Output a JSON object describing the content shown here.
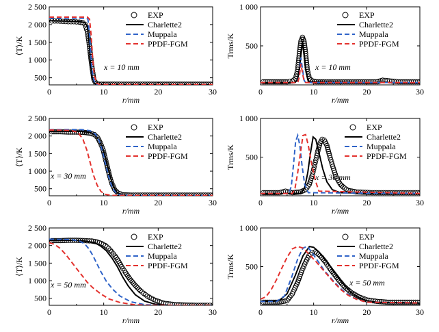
{
  "chart_data": [
    {
      "type": "line",
      "panel": "T-mean x=10",
      "ylabel": "⟨T⟩/K",
      "xlabel": "r/mm",
      "annotation": "x = 10 mm",
      "xlim": [
        0,
        30
      ],
      "ylim": [
        300,
        2500
      ],
      "xticks": [
        "0",
        "10",
        "20",
        "30"
      ],
      "yticks": [
        "500",
        "1 000",
        "1 500",
        "2 000",
        "2 500"
      ],
      "legend": [
        "EXP",
        "Charlette2",
        "Muppala",
        "PPDF-FGM"
      ],
      "series": [
        {
          "name": "EXP",
          "style": "marker",
          "x": [
            0.5,
            1.5,
            2.5,
            3.5,
            4.5,
            5.5,
            6.2,
            6.6,
            7.0,
            7.3,
            7.6,
            7.9,
            8.2,
            8.6,
            9.2,
            10,
            12,
            15,
            18,
            22,
            26,
            30
          ],
          "y": [
            2100,
            2100,
            2090,
            2080,
            2080,
            2070,
            2050,
            2000,
            1800,
            1500,
            1100,
            750,
            450,
            330,
            320,
            320,
            320,
            320,
            320,
            320,
            320,
            320
          ]
        },
        {
          "name": "Charlette2",
          "x": [
            0,
            5,
            6.5,
            7.0,
            7.3,
            7.6,
            7.9,
            8.3,
            9,
            30
          ],
          "y": [
            2110,
            2090,
            2060,
            1950,
            1500,
            900,
            500,
            340,
            310,
            310
          ]
        },
        {
          "name": "Muppala",
          "x": [
            0,
            6.8,
            7.1,
            7.4,
            7.7,
            8.0,
            8.4,
            9,
            30
          ],
          "y": [
            2180,
            2180,
            2150,
            1700,
            1000,
            550,
            330,
            310,
            310
          ]
        },
        {
          "name": "PPDF-FGM",
          "x": [
            0,
            7.0,
            7.4,
            7.7,
            8.0,
            8.3,
            8.7,
            9.2,
            30
          ],
          "y": [
            2210,
            2210,
            2150,
            1700,
            1000,
            550,
            350,
            310,
            310
          ]
        }
      ]
    },
    {
      "type": "line",
      "panel": "Trms x=10",
      "ylabel": "Trms/K",
      "xlabel": "r/mm",
      "annotation": "x = 10 mm",
      "xlim": [
        0,
        30
      ],
      "ylim": [
        0,
        1000
      ],
      "xticks": [
        "0",
        "10",
        "20",
        "30"
      ],
      "yticks": [
        "500",
        "1 000"
      ],
      "legend": [
        "EXP",
        "Charlette2",
        "Muppala",
        "PPDF-FGM"
      ],
      "series": [
        {
          "name": "EXP",
          "style": "marker",
          "x": [
            0.5,
            2,
            3.5,
            5,
            6,
            6.6,
            7.0,
            7.3,
            7.6,
            7.9,
            8.2,
            8.5,
            8.8,
            9.2,
            9.8,
            10.5,
            12,
            15,
            18,
            22,
            23,
            26,
            30
          ],
          "y": [
            40,
            40,
            40,
            40,
            50,
            80,
            200,
            400,
            560,
            610,
            560,
            400,
            200,
            80,
            50,
            40,
            40,
            40,
            40,
            40,
            60,
            40,
            40
          ]
        },
        {
          "name": "Charlette2",
          "x": [
            0,
            6.5,
            7.0,
            7.3,
            7.6,
            7.9,
            8.2,
            8.5,
            9.0,
            30
          ],
          "y": [
            30,
            30,
            70,
            200,
            420,
            560,
            420,
            200,
            40,
            30
          ]
        },
        {
          "name": "Muppala",
          "x": [
            0,
            7.0,
            7.3,
            7.6,
            7.9,
            8.2,
            8.5,
            30
          ],
          "y": [
            30,
            30,
            120,
            350,
            200,
            60,
            30,
            30
          ]
        },
        {
          "name": "PPDF-FGM",
          "x": [
            0,
            7.0,
            7.3,
            7.6,
            7.9,
            8.2,
            8.5,
            30
          ],
          "y": [
            30,
            30,
            100,
            270,
            150,
            50,
            30,
            30
          ]
        }
      ]
    },
    {
      "type": "line",
      "panel": "T-mean x=30",
      "ylabel": "⟨T⟩/K",
      "xlabel": "r/mm",
      "annotation": "x = 30 mm",
      "xlim": [
        0,
        30
      ],
      "ylim": [
        300,
        2500
      ],
      "xticks": [
        "0",
        "10",
        "20",
        "30"
      ],
      "yticks": [
        "500",
        "1 000",
        "1 500",
        "2 000",
        "2 500"
      ],
      "legend": [
        "EXP",
        "Charlette2",
        "Muppala",
        "PPDF-FGM"
      ],
      "series": [
        {
          "name": "EXP",
          "style": "marker",
          "x": [
            0.5,
            2,
            3.5,
            5,
            6.5,
            7.5,
            8.3,
            8.9,
            9.4,
            9.9,
            10.3,
            10.7,
            11.1,
            11.5,
            12,
            12.6,
            13.5,
            15,
            18,
            21,
            24,
            27,
            30
          ],
          "y": [
            2120,
            2120,
            2110,
            2110,
            2100,
            2080,
            2040,
            1950,
            1800,
            1600,
            1350,
            1100,
            850,
            650,
            480,
            380,
            330,
            320,
            320,
            320,
            320,
            320,
            320
          ]
        },
        {
          "name": "Charlette2",
          "x": [
            0,
            6,
            7.5,
            8.5,
            9.3,
            10,
            10.6,
            11.2,
            11.8,
            12.5,
            13.5,
            15,
            30
          ],
          "y": [
            2130,
            2130,
            2100,
            2020,
            1850,
            1550,
            1200,
            850,
            550,
            380,
            320,
            310,
            310
          ]
        },
        {
          "name": "Muppala",
          "x": [
            0,
            6,
            7.5,
            8.5,
            9.2,
            9.8,
            10.4,
            11,
            11.6,
            12.3,
            13.2,
            15,
            30
          ],
          "y": [
            2180,
            2180,
            2150,
            2050,
            1850,
            1550,
            1150,
            800,
            520,
            370,
            320,
            310,
            310
          ]
        },
        {
          "name": "PPDF-FGM",
          "x": [
            0,
            4,
            5.3,
            6.2,
            6.9,
            7.5,
            8.1,
            8.8,
            9.5,
            10.3,
            11.5,
            30
          ],
          "y": [
            2170,
            2160,
            2100,
            1900,
            1600,
            1250,
            900,
            600,
            420,
            340,
            310,
            310
          ]
        }
      ]
    },
    {
      "type": "line",
      "panel": "Trms x=30",
      "ylabel": "Trms/K",
      "xlabel": "r/mm",
      "annotation": "x = 30 mm",
      "xlim": [
        0,
        30
      ],
      "ylim": [
        0,
        1000
      ],
      "xticks": [
        "0",
        "10",
        "20",
        "30"
      ],
      "yticks": [
        "500",
        "1 000"
      ],
      "legend": [
        "EXP",
        "Charlette2",
        "Muppala",
        "PPDF-FGM"
      ],
      "series": [
        {
          "name": "EXP",
          "style": "marker",
          "x": [
            0.5,
            2,
            3.5,
            4.7,
            6,
            7.5,
            8.5,
            9.2,
            9.8,
            10.3,
            10.8,
            11.2,
            11.6,
            12.0,
            12.5,
            13.0,
            13.6,
            14.2,
            15,
            15.8,
            16.5,
            18,
            21,
            24,
            27,
            30
          ],
          "y": [
            40,
            40,
            40,
            60,
            40,
            50,
            80,
            150,
            280,
            430,
            580,
            680,
            730,
            720,
            650,
            520,
            380,
            250,
            150,
            100,
            70,
            50,
            40,
            40,
            40,
            40
          ]
        },
        {
          "name": "Charlette2",
          "x": [
            0,
            7.5,
            8.3,
            8.9,
            9.4,
            9.9,
            10.4,
            11,
            11.7,
            12.5,
            13.5,
            15,
            30
          ],
          "y": [
            30,
            30,
            100,
            300,
            550,
            760,
            730,
            560,
            350,
            180,
            80,
            40,
            30
          ]
        },
        {
          "name": "Muppala",
          "x": [
            0,
            5.3,
            5.8,
            6.2,
            6.6,
            7.0,
            7.4,
            7.8,
            8.3,
            9,
            30
          ],
          "y": [
            30,
            30,
            120,
            400,
            700,
            780,
            650,
            400,
            150,
            40,
            30
          ]
        },
        {
          "name": "PPDF-FGM",
          "x": [
            0,
            6,
            6.5,
            7,
            7.5,
            8,
            8.5,
            9,
            9.6,
            10.3,
            11,
            30
          ],
          "y": [
            30,
            30,
            100,
            300,
            550,
            780,
            790,
            650,
            420,
            200,
            60,
            30
          ]
        }
      ]
    },
    {
      "type": "line",
      "panel": "T-mean x=50",
      "ylabel": "⟨T⟩/K",
      "xlabel": "r/mm",
      "annotation": "x = 50 mm",
      "xlim": [
        0,
        30
      ],
      "ylim": [
        300,
        2500
      ],
      "xticks": [
        "0",
        "10",
        "20",
        "30"
      ],
      "yticks": [
        "500",
        "1 000",
        "1 500",
        "2 000",
        "2 500"
      ],
      "legend": [
        "EXP",
        "Charlette2",
        "Muppala",
        "PPDF-FGM"
      ],
      "series": [
        {
          "name": "EXP",
          "style": "marker",
          "x": [
            0.5,
            2,
            3.5,
            5,
            6.5,
            7.8,
            8.8,
            9.6,
            10.3,
            10.9,
            11.5,
            12.1,
            12.7,
            13.3,
            14,
            14.8,
            15.7,
            16.7,
            18,
            19.5,
            21,
            23,
            25,
            27,
            29,
            30
          ],
          "y": [
            2140,
            2140,
            2150,
            2150,
            2140,
            2130,
            2100,
            2060,
            2000,
            1920,
            1820,
            1700,
            1560,
            1400,
            1230,
            1050,
            880,
            720,
            560,
            440,
            360,
            320,
            310,
            300,
            300,
            300
          ]
        },
        {
          "name": "Charlette2",
          "x": [
            0,
            5,
            7,
            8.5,
            9.5,
            10.5,
            11.5,
            12.5,
            13.5,
            14.5,
            15.8,
            17.5,
            19.5,
            22,
            30
          ],
          "y": [
            2150,
            2150,
            2120,
            2070,
            1980,
            1850,
            1650,
            1400,
            1100,
            850,
            600,
            420,
            330,
            300,
            300
          ]
        },
        {
          "name": "Muppala",
          "x": [
            0,
            4,
            5.5,
            6.5,
            7.3,
            8,
            8.7,
            9.5,
            10.5,
            11.7,
            13,
            15,
            17.5,
            20,
            30
          ],
          "y": [
            2180,
            2170,
            2130,
            2050,
            1900,
            1720,
            1500,
            1250,
            980,
            750,
            560,
            400,
            320,
            300,
            300
          ]
        },
        {
          "name": "PPDF-FGM",
          "x": [
            0,
            1,
            2,
            3,
            4,
            5,
            6,
            7,
            8,
            9.5,
            11,
            13,
            15.5,
            18,
            30
          ],
          "y": [
            2080,
            2030,
            1920,
            1750,
            1550,
            1350,
            1150,
            950,
            800,
            620,
            480,
            380,
            320,
            300,
            300
          ]
        }
      ]
    },
    {
      "type": "line",
      "panel": "Trms x=50",
      "ylabel": "Trms/K",
      "xlabel": "r/mm",
      "annotation": "x = 50 mm",
      "xlim": [
        0,
        30
      ],
      "ylim": [
        0,
        1000
      ],
      "xticks": [
        "0",
        "10",
        "20",
        "30"
      ],
      "yticks": [
        "500",
        "1 000"
      ],
      "legend": [
        "EXP",
        "Charlette2",
        "Muppala",
        "PPDF-FGM"
      ],
      "series": [
        {
          "name": "EXP",
          "style": "marker",
          "x": [
            0.5,
            2,
            3.5,
            5,
            6,
            7,
            7.8,
            8.5,
            9.1,
            9.7,
            10.3,
            10.9,
            11.5,
            12.2,
            13,
            13.9,
            14.8,
            15.8,
            17,
            18.5,
            20,
            22,
            24,
            26,
            28,
            30
          ],
          "y": [
            40,
            40,
            40,
            60,
            150,
            300,
            450,
            560,
            640,
            680,
            690,
            660,
            620,
            560,
            480,
            400,
            320,
            240,
            170,
            110,
            70,
            50,
            40,
            40,
            40,
            40
          ]
        },
        {
          "name": "Charlette2",
          "x": [
            0,
            2,
            3.5,
            5,
            6.5,
            8,
            9.2,
            10,
            11,
            12.5,
            14,
            15.5,
            17,
            18.5,
            20,
            22,
            30
          ],
          "y": [
            50,
            50,
            60,
            150,
            380,
            640,
            760,
            750,
            690,
            560,
            420,
            280,
            170,
            100,
            60,
            40,
            30
          ]
        },
        {
          "name": "Muppala",
          "x": [
            0,
            3,
            4.5,
            5.8,
            7,
            8,
            8.8,
            9.5,
            10.5,
            12,
            13.5,
            15,
            16.5,
            18,
            20,
            30
          ],
          "y": [
            50,
            50,
            120,
            350,
            600,
            740,
            760,
            700,
            600,
            450,
            330,
            220,
            140,
            80,
            40,
            30
          ]
        },
        {
          "name": "PPDF-FGM",
          "x": [
            0,
            1,
            2,
            3,
            4,
            5,
            6,
            7,
            8,
            9,
            10.5,
            12,
            13.5,
            15,
            16.5,
            18,
            20,
            30
          ],
          "y": [
            80,
            110,
            200,
            330,
            480,
            620,
            730,
            760,
            740,
            670,
            560,
            440,
            320,
            210,
            130,
            80,
            40,
            30
          ]
        }
      ]
    }
  ],
  "colors": {
    "EXP": "#000000",
    "Charlette2": "#000000",
    "Muppala": "#2f63c8",
    "PPDF-FGM": "#e3312d"
  }
}
